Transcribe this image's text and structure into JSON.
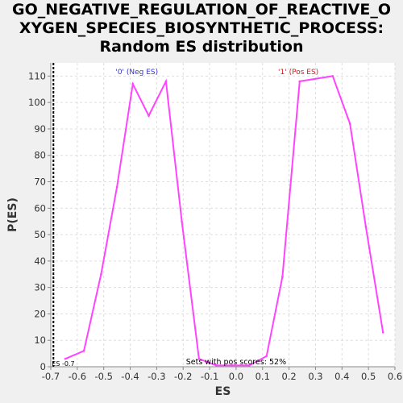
{
  "title_lines": [
    "GO_NEGATIVE_REGULATION_OF_REACTIVE_O",
    "XYGEN_SPECIES_BIOSYNTHETIC_PROCESS:",
    "Random ES distribution"
  ],
  "colors": {
    "background": "#f0f0f0",
    "plot_background": "#ffffff",
    "line": "#ff44ff",
    "neg_label": "#3333cc",
    "pos_label": "#cc2222",
    "grid": "#dddddd"
  },
  "chart_data": {
    "type": "line",
    "title": "GO_NEGATIVE_REGULATION_OF_REACTIVE_OXYGEN_SPECIES_BIOSYNTHETIC_PROCESS: Random ES distribution",
    "xlabel": "ES",
    "ylabel": "P(ES)",
    "xlim": [
      -0.7,
      0.6
    ],
    "ylim": [
      0,
      115
    ],
    "xticks": [
      -0.7,
      -0.6,
      -0.5,
      -0.4,
      -0.3,
      -0.2,
      -0.1,
      0.0,
      0.1,
      0.2,
      0.3,
      0.4,
      0.5,
      0.6
    ],
    "xtick_labels": [
      "-0.7",
      "-0.6",
      "-0.5",
      "-0.4",
      "-0.3",
      "-0.2",
      "-0.1",
      "0.0",
      "0.1",
      "0.2",
      "0.3",
      "0.4",
      "0.5",
      "0.6"
    ],
    "yticks": [
      0,
      10,
      20,
      30,
      40,
      50,
      60,
      70,
      80,
      90,
      100,
      110
    ],
    "ytick_labels": [
      "0",
      "10",
      "20",
      "30",
      "40",
      "50",
      "60",
      "70",
      "80",
      "90",
      "100",
      "110"
    ],
    "grid": true,
    "series": [
      {
        "x": [
          -0.645,
          -0.575,
          -0.51,
          -0.45,
          -0.39,
          -0.33,
          -0.265,
          -0.205,
          -0.14,
          -0.075,
          -0.015,
          0.05,
          0.115,
          0.175,
          0.24,
          0.365,
          0.43,
          0.49,
          0.555
        ],
        "y": [
          3,
          6,
          35,
          68,
          107,
          95,
          108,
          55,
          3,
          0.5,
          0.5,
          0.5,
          4,
          34,
          108,
          110,
          92,
          53,
          13
        ]
      }
    ],
    "annotations": {
      "neg_label": "'0' (Neg ES)",
      "pos_label": "'1' (Pos ES)",
      "pos_scores": "Sets with pos scores: 52%",
      "es_marker_label": "ES -0.7",
      "es_marker_x": -0.69
    }
  }
}
